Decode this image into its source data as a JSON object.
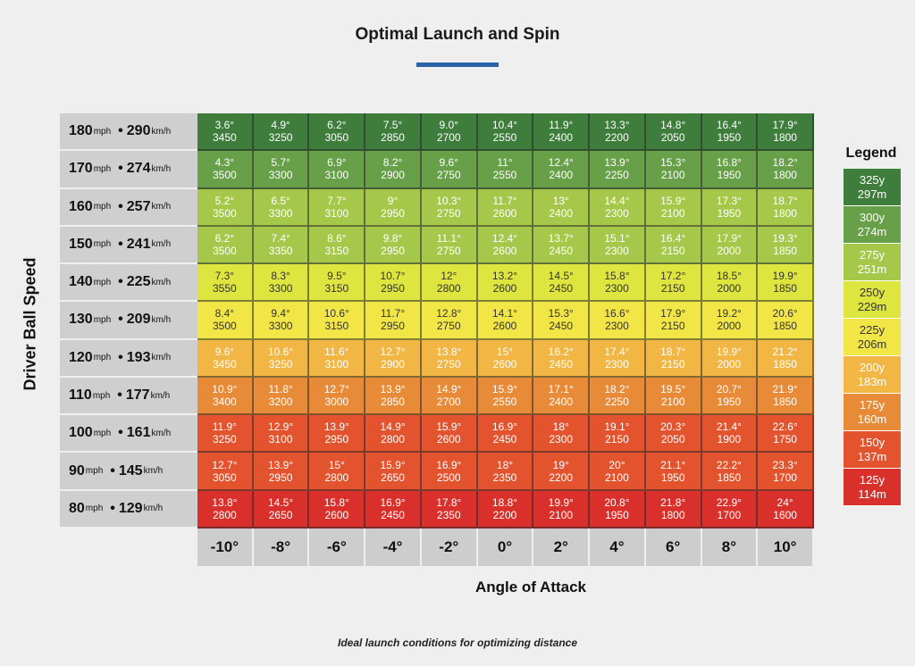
{
  "title": "Optimal Launch and Spin",
  "ylabel": "Driver Ball Speed",
  "xlabel": "Angle of Attack",
  "caption": "Ideal launch conditions for optimizing distance",
  "speed_units": {
    "mph": "mph",
    "kmh": "km/h",
    "sep": "•"
  },
  "speed_rows": [
    {
      "mph": "180",
      "kmh": "290"
    },
    {
      "mph": "170",
      "kmh": "274"
    },
    {
      "mph": "160",
      "kmh": "257"
    },
    {
      "mph": "150",
      "kmh": "241"
    },
    {
      "mph": "140",
      "kmh": "225"
    },
    {
      "mph": "130",
      "kmh": "209"
    },
    {
      "mph": "120",
      "kmh": "193"
    },
    {
      "mph": "110",
      "kmh": "177"
    },
    {
      "mph": "100",
      "kmh": "161"
    },
    {
      "mph": "90",
      "kmh": "145"
    },
    {
      "mph": "80",
      "kmh": "129"
    }
  ],
  "attack_angles": [
    "-10°",
    "-8°",
    "-6°",
    "-4°",
    "-2°",
    "0°",
    "2°",
    "4°",
    "6°",
    "8°",
    "10°"
  ],
  "legend": {
    "title": "Legend",
    "items": [
      {
        "yards": "325y",
        "meters": "297m",
        "color": "#3e7d3c"
      },
      {
        "yards": "300y",
        "meters": "274m",
        "color": "#67a048"
      },
      {
        "yards": "275y",
        "meters": "251m",
        "color": "#a6c84a"
      },
      {
        "yards": "250y",
        "meters": "229m",
        "color": "#dde53e"
      },
      {
        "yards": "225y",
        "meters": "206m",
        "color": "#f2e646"
      },
      {
        "yards": "200y",
        "meters": "183m",
        "color": "#f1b643"
      },
      {
        "yards": "175y",
        "meters": "160m",
        "color": "#e88b39"
      },
      {
        "yards": "150y",
        "meters": "137m",
        "color": "#e2532e"
      },
      {
        "yards": "125y",
        "meters": "114m",
        "color": "#d9302b"
      }
    ]
  },
  "row_legend_index": [
    0,
    1,
    2,
    2,
    3,
    4,
    5,
    6,
    7,
    7,
    8
  ],
  "chart_data": {
    "type": "heatmap",
    "title": "Optimal Launch and Spin",
    "xlabel": "Angle of Attack",
    "ylabel": "Driver Ball Speed",
    "x": [
      "-10°",
      "-8°",
      "-6°",
      "-4°",
      "-2°",
      "0°",
      "2°",
      "4°",
      "6°",
      "8°",
      "10°"
    ],
    "y": [
      "180mph • 290km/h",
      "170mph • 274km/h",
      "160mph • 257km/h",
      "150mph • 241km/h",
      "140mph • 225km/h",
      "130mph • 209km/h",
      "120mph • 193km/h",
      "110mph • 177km/h",
      "100mph • 161km/h",
      "90mph • 145km/h",
      "80mph • 129km/h"
    ],
    "launch": [
      [
        "3.6°",
        "4.9°",
        "6.2°",
        "7.5°",
        "9.0°",
        "10.4°",
        "11.9°",
        "13.3°",
        "14.8°",
        "16.4°",
        "17.9°"
      ],
      [
        "4.3°",
        "5.7°",
        "6.9°",
        "8.2°",
        "9.6°",
        "11°",
        "12.4°",
        "13.9°",
        "15.3°",
        "16.8°",
        "18.2°"
      ],
      [
        "5.2°",
        "6.5°",
        "7.7°",
        "9°",
        "10.3°",
        "11.7°",
        "13°",
        "14.4°",
        "15.9°",
        "17.3°",
        "18.7°"
      ],
      [
        "6.2°",
        "7.4°",
        "8.6°",
        "9.8°",
        "11.1°",
        "12.4°",
        "13.7°",
        "15.1°",
        "16.4°",
        "17.9°",
        "19.3°"
      ],
      [
        "7.3°",
        "8.3°",
        "9.5°",
        "10.7°",
        "12°",
        "13.2°",
        "14.5°",
        "15.8°",
        "17.2°",
        "18.5°",
        "19.9°"
      ],
      [
        "8.4°",
        "9.4°",
        "10.6°",
        "11.7°",
        "12.8°",
        "14.1°",
        "15.3°",
        "16.6°",
        "17.9°",
        "19.2°",
        "20.6°"
      ],
      [
        "9.6°",
        "10.6°",
        "11.6°",
        "12.7°",
        "13.8°",
        "15°",
        "16.2°",
        "17.4°",
        "18.7°",
        "19.9°",
        "21.2°"
      ],
      [
        "10.9°",
        "11.8°",
        "12.7°",
        "13.9°",
        "14.9°",
        "15.9°",
        "17.1°",
        "18.2°",
        "19.5°",
        "20.7°",
        "21.9°"
      ],
      [
        "11.9°",
        "12.9°",
        "13.9°",
        "14.9°",
        "15.9°",
        "16.9°",
        "18°",
        "19.1°",
        "20.3°",
        "21.4°",
        "22.6°"
      ],
      [
        "12.7°",
        "13.9°",
        "15°",
        "15.9°",
        "16.9°",
        "18°",
        "19°",
        "20°",
        "21.1°",
        "22.2°",
        "23.3°"
      ],
      [
        "13.8°",
        "14.5°",
        "15.8°",
        "16.9°",
        "17.8°",
        "18.8°",
        "19.9°",
        "20.8°",
        "21.8°",
        "22.9°",
        "24°"
      ]
    ],
    "spin": [
      [
        "3450",
        "3250",
        "3050",
        "2850",
        "2700",
        "2550",
        "2400",
        "2200",
        "2050",
        "1950",
        "1800"
      ],
      [
        "3500",
        "3300",
        "3100",
        "2900",
        "2750",
        "2550",
        "2400",
        "2250",
        "2100",
        "1950",
        "1800"
      ],
      [
        "3500",
        "3300",
        "3100",
        "2950",
        "2750",
        "2600",
        "2400",
        "2300",
        "2100",
        "1950",
        "1800"
      ],
      [
        "3500",
        "3350",
        "3150",
        "2950",
        "2750",
        "2600",
        "2450",
        "2300",
        "2150",
        "2000",
        "1850"
      ],
      [
        "3550",
        "3300",
        "3150",
        "2950",
        "2800",
        "2600",
        "2450",
        "2300",
        "2150",
        "2000",
        "1850"
      ],
      [
        "3500",
        "3300",
        "3150",
        "2950",
        "2750",
        "2600",
        "2450",
        "2300",
        "2150",
        "2000",
        "1850"
      ],
      [
        "3450",
        "3250",
        "3100",
        "2900",
        "2750",
        "2600",
        "2450",
        "2300",
        "2150",
        "2000",
        "1850"
      ],
      [
        "3400",
        "3200",
        "3000",
        "2850",
        "2700",
        "2550",
        "2400",
        "2250",
        "2100",
        "1950",
        "1850"
      ],
      [
        "3250",
        "3100",
        "2950",
        "2800",
        "2600",
        "2450",
        "2300",
        "2150",
        "2050",
        "1900",
        "1750"
      ],
      [
        "3050",
        "2950",
        "2800",
        "2650",
        "2500",
        "2350",
        "2200",
        "2100",
        "1950",
        "1850",
        "1700"
      ],
      [
        "2800",
        "2650",
        "2600",
        "2450",
        "2350",
        "2200",
        "2100",
        "1950",
        "1800",
        "1700",
        "1600"
      ]
    ]
  }
}
